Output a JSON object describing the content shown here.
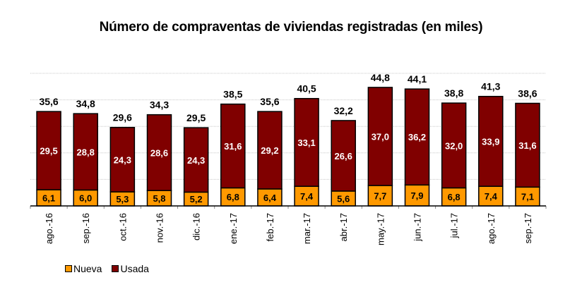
{
  "chart_data": {
    "type": "bar",
    "stacked": true,
    "title": "Número de compraventas de viviendas registradas (en miles)",
    "xlabel": "",
    "ylabel": "",
    "ylim": [
      0,
      50
    ],
    "grid": true,
    "legend_position": "bottom-left",
    "categories": [
      "ago.-16",
      "sep.-16",
      "oct.-16",
      "nov.-16",
      "dic.-16",
      "ene.-17",
      "feb.-17",
      "mar.-17",
      "abr.-17",
      "may.-17",
      "jun.-17",
      "jul.-17",
      "ago.-17",
      "sep.-17"
    ],
    "series": [
      {
        "name": "Nueva",
        "color": "#FF9900",
        "values": [
          6.1,
          6.0,
          5.3,
          5.8,
          5.2,
          6.8,
          6.4,
          7.4,
          5.6,
          7.7,
          7.9,
          6.8,
          7.4,
          7.1
        ],
        "labels": [
          "6,1",
          "6,0",
          "5,3",
          "5,8",
          "5,2",
          "6,8",
          "6,4",
          "7,4",
          "5,6",
          "7,7",
          "7,9",
          "6,8",
          "7,4",
          "7,1"
        ]
      },
      {
        "name": "Usada",
        "color": "#800000",
        "values": [
          29.5,
          28.8,
          24.3,
          28.6,
          24.3,
          31.6,
          29.2,
          33.1,
          26.6,
          37.0,
          36.2,
          32.0,
          33.9,
          31.6
        ],
        "labels": [
          "29,5",
          "28,8",
          "24,3",
          "28,6",
          "24,3",
          "31,6",
          "29,2",
          "33,1",
          "26,6",
          "37,0",
          "36,2",
          "32,0",
          "33,9",
          "31,6"
        ]
      }
    ],
    "totals": [
      35.6,
      34.8,
      29.6,
      34.3,
      29.5,
      38.5,
      35.6,
      40.5,
      32.2,
      44.8,
      44.1,
      38.8,
      41.3,
      38.6
    ],
    "total_labels": [
      "35,6",
      "34,8",
      "29,6",
      "34,3",
      "29,5",
      "38,5",
      "35,6",
      "40,5",
      "32,2",
      "44,8",
      "44,1",
      "38,8",
      "41,3",
      "38,6"
    ]
  },
  "legend": {
    "items": [
      {
        "label": "Nueva",
        "color": "#FF9900"
      },
      {
        "label": "Usada",
        "color": "#800000"
      }
    ]
  }
}
